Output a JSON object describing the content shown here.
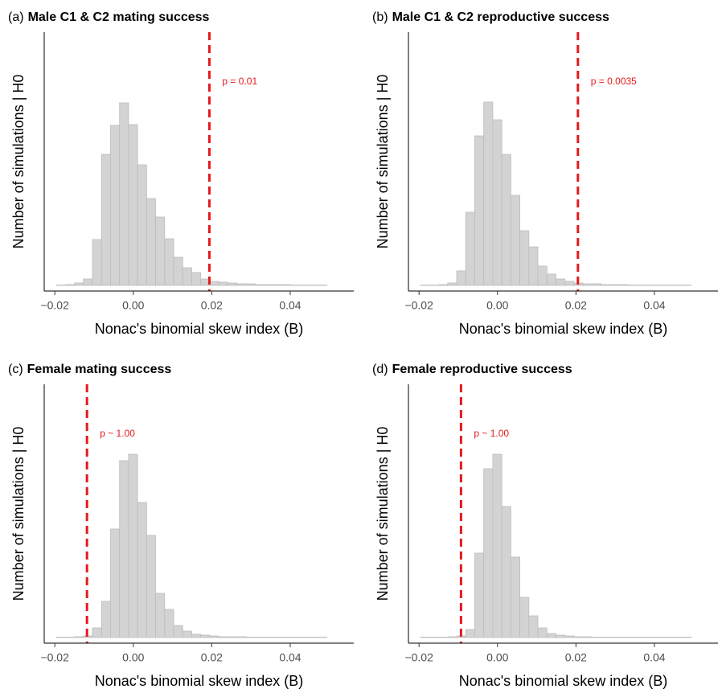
{
  "chart_data": [
    {
      "type": "histogram",
      "panel_label": "(a)",
      "title": "Male C1 & C2 mating success",
      "x_label": "Nonac's binomial skew index (B)",
      "y_label": "Number of simulations | H0",
      "bins": [
        -0.0196,
        -0.0173,
        -0.015,
        -0.0127,
        -0.0104,
        -0.0081,
        -0.0058,
        -0.0035,
        -0.0012,
        0.0011,
        0.0034,
        0.0057,
        0.008,
        0.0103,
        0.0126,
        0.0149,
        0.0172,
        0.0195,
        0.0218,
        0.0241,
        0.0264,
        0.0287,
        0.031,
        0.0333,
        0.0356,
        0.0379,
        0.0402,
        0.0425,
        0.0448,
        0.0471,
        0.0494
      ],
      "values": [
        0.5,
        1,
        3,
        8,
        57,
        163,
        199,
        227,
        200,
        150,
        108,
        85,
        58,
        35,
        22,
        16,
        8,
        5,
        4,
        3,
        2,
        2,
        1,
        1,
        1,
        1,
        0.5,
        0.5,
        0.5,
        0.5
      ],
      "color": "#d3d3d3",
      "vline": 0.0194,
      "vline_color": "#e41a1c",
      "annotation": "p = 0.01",
      "xlim": [
        -0.0227,
        0.0562
      ],
      "ylim": [
        0,
        320
      ],
      "xticks": [
        {
          "value": -0.02,
          "label": "−0.02"
        },
        {
          "value": 0,
          "label": "0.00"
        },
        {
          "value": 0.02,
          "label": "0.02"
        },
        {
          "value": 0.04,
          "label": "0.04"
        }
      ]
    },
    {
      "type": "histogram",
      "panel_label": "(b)",
      "title": "Male C1 & C2 reproductive success",
      "x_label": "Nonac's binomial skew index (B)",
      "y_label": "Number of simulations | H0",
      "bins": [
        -0.0196,
        -0.0173,
        -0.015,
        -0.0127,
        -0.0104,
        -0.0081,
        -0.0058,
        -0.0035,
        -0.0012,
        0.0011,
        0.0034,
        0.0057,
        0.008,
        0.0103,
        0.0126,
        0.0149,
        0.0172,
        0.0195,
        0.0218,
        0.0241,
        0.0264,
        0.0287,
        0.031,
        0.0333,
        0.0356,
        0.0379,
        0.0402,
        0.0425,
        0.0448,
        0.0471,
        0.0494
      ],
      "values": [
        0.5,
        0.5,
        1,
        3,
        18,
        91,
        186,
        228,
        206,
        163,
        112,
        68,
        48,
        24,
        14,
        8,
        5,
        3,
        2,
        2,
        1,
        1,
        1,
        0.5,
        0.5,
        0.5,
        0.5,
        0.5,
        0.5,
        0.5
      ],
      "color": "#d3d3d3",
      "vline": 0.0205,
      "vline_color": "#e41a1c",
      "annotation": "p = 0.0035",
      "xlim": [
        -0.0227,
        0.0562
      ],
      "ylim": [
        0,
        320
      ],
      "xticks": [
        {
          "value": -0.02,
          "label": "−0.02"
        },
        {
          "value": 0,
          "label": "0.00"
        },
        {
          "value": 0.02,
          "label": "0.02"
        },
        {
          "value": 0.04,
          "label": "0.04"
        }
      ]
    },
    {
      "type": "histogram",
      "panel_label": "(c)",
      "title": "Female mating success",
      "x_label": "Nonac's binomial skew index (B)",
      "y_label": "Number of simulations | H0",
      "bins": [
        -0.0196,
        -0.0173,
        -0.015,
        -0.0127,
        -0.0104,
        -0.0081,
        -0.0058,
        -0.0035,
        -0.0012,
        0.0011,
        0.0034,
        0.0057,
        0.008,
        0.0103,
        0.0126,
        0.0149,
        0.0172,
        0.0195,
        0.0218,
        0.0241,
        0.0264,
        0.0287,
        0.031,
        0.0333,
        0.0356,
        0.0379,
        0.0402,
        0.0425,
        0.0448,
        0.0471,
        0.0494
      ],
      "values": [
        0.5,
        0.5,
        1,
        2,
        12,
        45,
        135,
        220,
        228,
        168,
        127,
        55,
        35,
        15,
        8,
        4,
        3,
        2,
        1,
        1,
        1,
        0.5,
        0.5,
        0.5,
        0.5,
        0.5,
        0.5,
        0.5,
        0.5,
        0.5
      ],
      "color": "#d3d3d3",
      "vline": -0.0118,
      "vline_color": "#e41a1c",
      "annotation": "p ~ 1.00",
      "xlim": [
        -0.0227,
        0.0562
      ],
      "ylim": [
        0,
        320
      ],
      "xticks": [
        {
          "value": -0.02,
          "label": "−0.02"
        },
        {
          "value": 0,
          "label": "0.00"
        },
        {
          "value": 0.02,
          "label": "0.02"
        },
        {
          "value": 0.04,
          "label": "0.04"
        }
      ]
    },
    {
      "type": "histogram",
      "panel_label": "(d)",
      "title": "Female reproductive success",
      "x_label": "Nonac's binomial skew index (B)",
      "y_label": "Number of simulations | H0",
      "bins": [
        -0.0196,
        -0.0173,
        -0.015,
        -0.0127,
        -0.0104,
        -0.0081,
        -0.0058,
        -0.0035,
        -0.0012,
        0.0011,
        0.0034,
        0.0057,
        0.008,
        0.0103,
        0.0126,
        0.0149,
        0.0172,
        0.0195,
        0.0218,
        0.0241,
        0.0264,
        0.0287,
        0.031,
        0.0333,
        0.0356,
        0.0379,
        0.0402,
        0.0425,
        0.0448,
        0.0471,
        0.0494
      ],
      "values": [
        0.5,
        0.5,
        0.5,
        1,
        2,
        10,
        105,
        210,
        228,
        163,
        100,
        50,
        27,
        12,
        5,
        3,
        2,
        1,
        1,
        0.5,
        0.5,
        0.5,
        0.5,
        0.5,
        0.5,
        0.5,
        0.5,
        0.5,
        0.5,
        0.5
      ],
      "color": "#d3d3d3",
      "vline": -0.0093,
      "vline_color": "#e41a1c",
      "annotation": "p ~ 1.00",
      "xlim": [
        -0.0227,
        0.0562
      ],
      "ylim": [
        0,
        320
      ],
      "xticks": [
        {
          "value": -0.02,
          "label": "−0.02"
        },
        {
          "value": 0,
          "label": "0.00"
        },
        {
          "value": 0.02,
          "label": "0.02"
        },
        {
          "value": 0.04,
          "label": "0.04"
        }
      ]
    }
  ]
}
